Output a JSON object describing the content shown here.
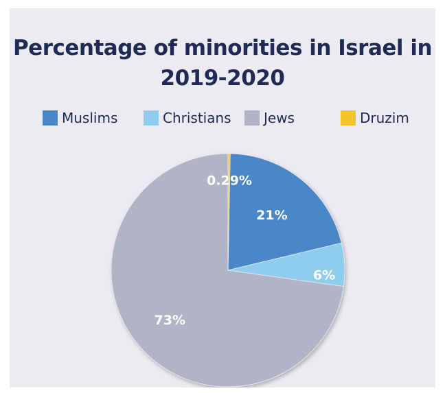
{
  "chart_data": {
    "type": "pie",
    "title": "Percentage of minorities in Israel in 2019-2020",
    "title_lines": [
      "Percentage of minorities in Israel in",
      "2019-2020"
    ],
    "categories": [
      "Muslims",
      "Christians",
      "Jews",
      "Druzim"
    ],
    "values": [
      21,
      6,
      73,
      0.29
    ],
    "labels": [
      "21%",
      "6%",
      "73%",
      "0.29%"
    ],
    "colors": [
      "#4a87c8",
      "#8fcdee",
      "#b1b4c6",
      "#f3c52b"
    ],
    "legend_position": "top"
  }
}
